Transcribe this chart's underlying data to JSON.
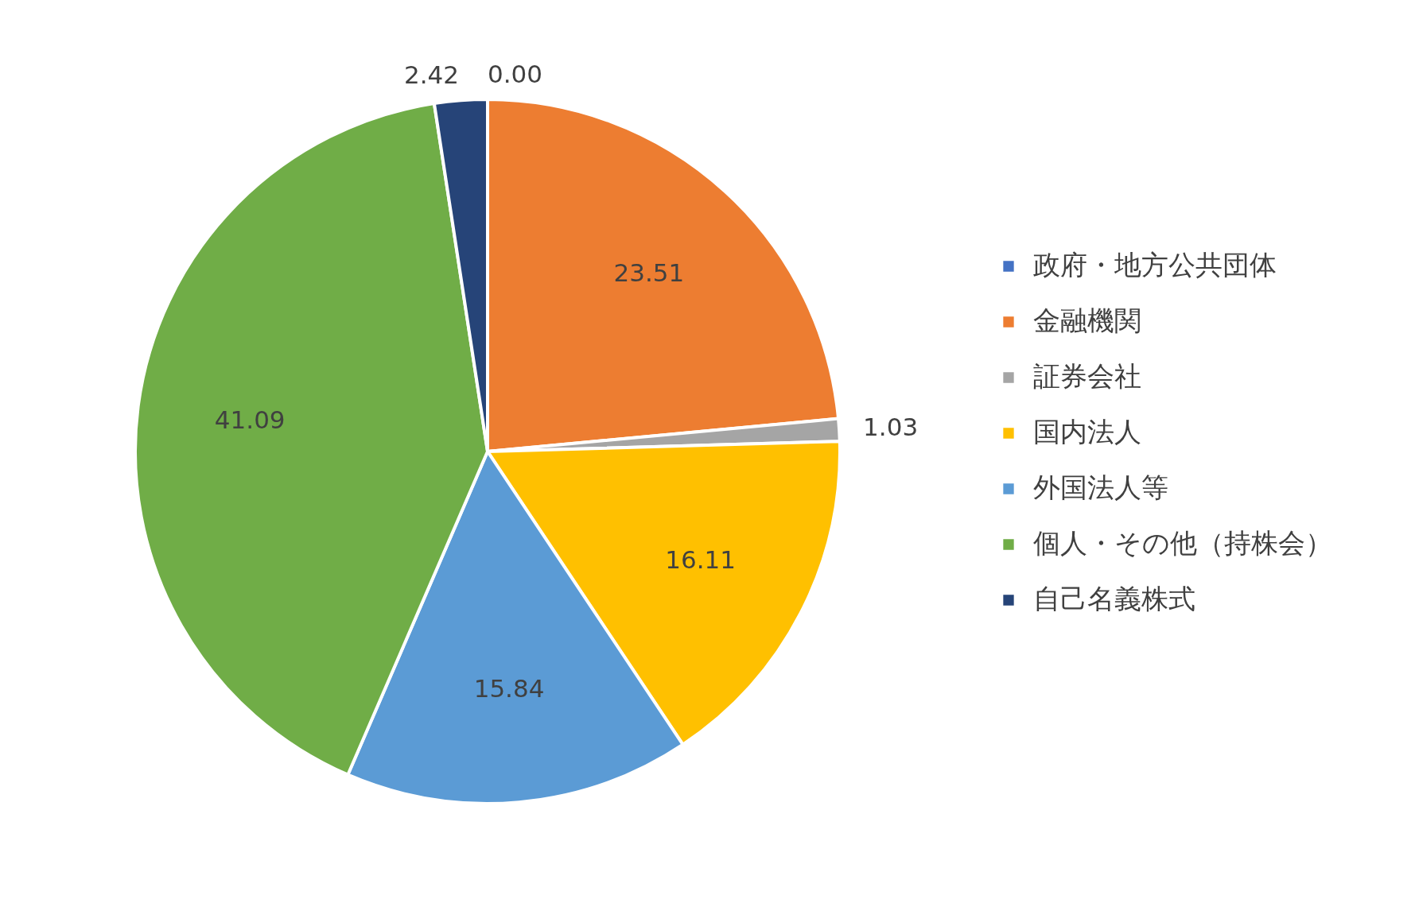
{
  "chart_data": {
    "type": "pie",
    "categories": [
      "政府・地方公共団体",
      "金融機関",
      "証券会社",
      "国内法人",
      "外国法人等",
      "個人・その他（持株会）",
      "自己名義株式"
    ],
    "values": [
      0.0,
      23.51,
      1.03,
      16.11,
      15.84,
      41.09,
      2.42
    ],
    "colors": [
      "#4472c4",
      "#ed7d31",
      "#a5a5a5",
      "#ffc000",
      "#5b9bd5",
      "#70ad47",
      "#264478"
    ],
    "value_labels": [
      "0.00",
      "23.51",
      "1.03",
      "16.11",
      "15.84",
      "41.09",
      "2.42"
    ],
    "legend": "right"
  }
}
